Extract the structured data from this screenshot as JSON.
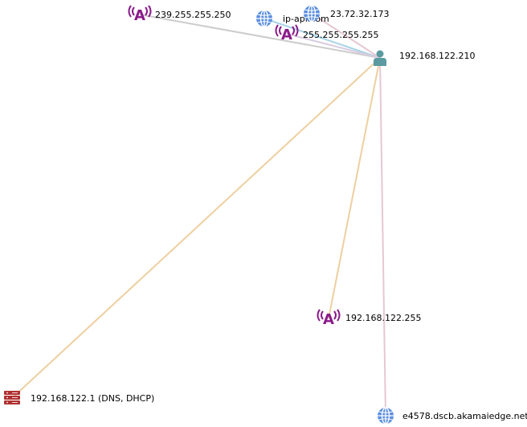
{
  "colors": {
    "background": "#ffffff",
    "host": "#5a9aa0",
    "broadcast": "#8a1a8a",
    "globe": "#5b8fe0",
    "server": "#b03030",
    "edge_dns": "#eecfa0",
    "edge_gray": "#cccccc",
    "edge_blue": "#a8d4e8",
    "edge_pink": "#e6c8d2",
    "edge_lavender": "#d8cce0"
  },
  "graph": {
    "nodes": [
      {
        "id": "host",
        "label": "192.168.122.210",
        "icon": "user-icon"
      },
      {
        "id": "bc239",
        "label": "239.255.255.250",
        "icon": "broadcast-icon"
      },
      {
        "id": "ipapi",
        "label": "ip-api.com",
        "icon": "globe-icon"
      },
      {
        "id": "ip23",
        "label": "23.72.32.173",
        "icon": "globe-icon"
      },
      {
        "id": "bc255",
        "label": "255.255.255.255",
        "icon": "broadcast-icon"
      },
      {
        "id": "bc122",
        "label": "192.168.122.255",
        "icon": "broadcast-icon"
      },
      {
        "id": "dns",
        "label": "192.168.122.1 (DNS, DHCP)",
        "icon": "server-icon"
      },
      {
        "id": "akamai",
        "label": "e4578.dscb.akamaiedge.net",
        "icon": "globe-icon"
      }
    ],
    "edges": [
      {
        "source": "host",
        "target": "bc239",
        "color": "edge_gray"
      },
      {
        "source": "host",
        "target": "ipapi",
        "color": "edge_blue"
      },
      {
        "source": "host",
        "target": "ip23",
        "color": "edge_pink"
      },
      {
        "source": "host",
        "target": "bc255",
        "color": "edge_lavender"
      },
      {
        "source": "host",
        "target": "bc122",
        "color": "edge_dns"
      },
      {
        "source": "host",
        "target": "dns",
        "color": "edge_dns"
      },
      {
        "source": "host",
        "target": "akamai",
        "color": "edge_pink"
      }
    ]
  }
}
